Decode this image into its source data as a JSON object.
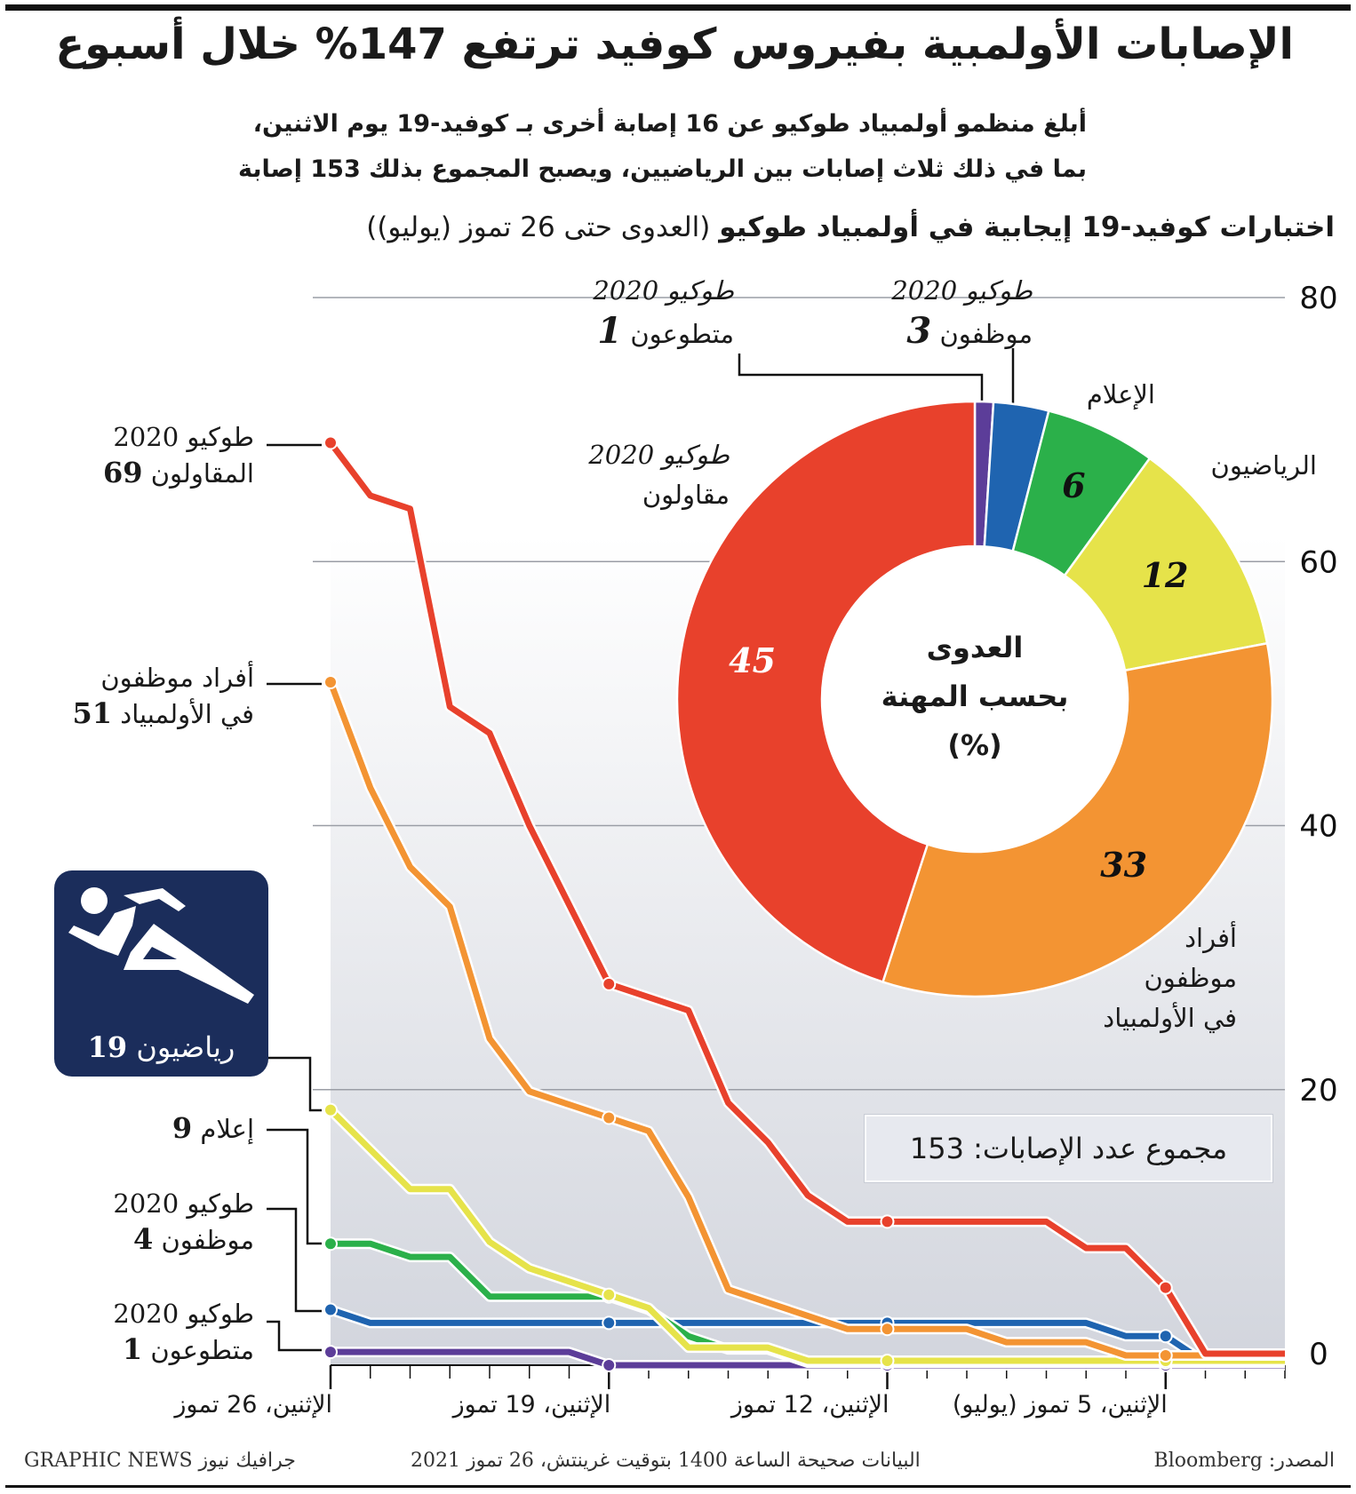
{
  "title": "الإصابات الأولمبية بفيروس كوفيد ترتفع 147% خلال أسبوع",
  "subtitle": [
    "أبلغ منظمو أولمبياد طوكيو عن 16 إصابة أخرى بـ كوفيد-19 يوم الاثنين،",
    "بما في ذلك ثلاث إصابات بين الرياضيين، ويصبح المجموع بذلك 153 إصابة"
  ],
  "chart_heading": {
    "bold": "اختبارات كوفيد-19 إيجابية في أولمبياد طوكيو",
    "normal": " (العدوى حتى 26 تموز (يوليو))"
  },
  "total_box": "مجموع عدد الإصابات: 153",
  "footer": {
    "left": "GRAPHIC NEWS جرافيك نيوز",
    "center": "البيانات صحيحة الساعة 1400 بتوقيت غرينتش، 26 تموز 2021",
    "right": "المصدر: Bloomberg"
  },
  "chart_data": [
    {
      "type": "line",
      "x_order": "reversed (latest date at left)",
      "x": [
        "26 Jul",
        "25 Jul",
        "24 Jul",
        "23 Jul",
        "22 Jul",
        "21 Jul",
        "20 Jul",
        "19 Jul",
        "18 Jul",
        "17 Jul",
        "16 Jul",
        "15 Jul",
        "14 Jul",
        "13 Jul",
        "12 Jul",
        "11 Jul",
        "10 Jul",
        "9 Jul",
        "8 Jul",
        "7 Jul",
        "6 Jul",
        "5 Jul",
        "4 Jul",
        "3 Jul",
        "2 Jul"
      ],
      "x_tick_labels": [
        {
          "at": "26 Jul",
          "label": "الإثنين، 26 تموز"
        },
        {
          "at": "19 Jul",
          "label": "الإثنين، 19 تموز"
        },
        {
          "at": "12 Jul",
          "label": "الإثنين، 12 تموز"
        },
        {
          "at": "5 Jul",
          "label": "الإثنين، 5 تموز (يوليو)"
        }
      ],
      "ylim": [
        0,
        80
      ],
      "y_ticks": [
        0,
        20,
        40,
        60,
        80
      ],
      "grid": true,
      "series": [
        {
          "key": "contractors",
          "color": "#e8412c",
          "label_lines": [
            "طوكيو 2020",
            "المقاولون"
          ],
          "total": "69",
          "values": [
            69,
            65,
            64,
            49,
            47,
            40,
            34,
            28,
            27,
            26,
            19,
            16,
            12,
            10,
            10,
            10,
            10,
            10,
            10,
            8,
            8,
            5,
            0,
            0,
            0
          ]
        },
        {
          "key": "staff",
          "color": "#f39433",
          "label_lines": [
            "أفراد موظفون",
            "في الأولمبياد"
          ],
          "total": "51",
          "values": [
            51,
            43,
            37,
            34,
            24,
            20,
            19,
            18,
            17,
            12,
            5,
            4,
            3,
            2,
            2,
            2,
            2,
            1,
            1,
            1,
            0,
            0,
            0,
            0,
            0
          ]
        },
        {
          "key": "athletes",
          "color": "#e6e34a",
          "label_lines": [
            "رياضيون"
          ],
          "total": "19",
          "values": [
            19,
            16,
            13,
            13,
            9,
            7,
            6,
            5,
            4,
            1,
            1,
            1,
            0,
            0,
            0,
            0,
            0,
            0,
            0,
            0,
            0,
            0,
            0,
            0,
            0
          ]
        },
        {
          "key": "media",
          "color": "#2bb04a",
          "label_lines": [
            "إعلام"
          ],
          "total": "9",
          "values": [
            9,
            9,
            8,
            8,
            5,
            5,
            5,
            5,
            4,
            2,
            1,
            1,
            0,
            0,
            0,
            0,
            0,
            0,
            0,
            0,
            0,
            0,
            0,
            0,
            0
          ]
        },
        {
          "key": "tokyo_staff",
          "color": "#1f64b0",
          "label_lines": [
            "طوكيو 2020",
            "موظفون"
          ],
          "total": "4",
          "values": [
            4,
            3,
            3,
            3,
            3,
            3,
            3,
            3,
            3,
            3,
            3,
            3,
            3,
            3,
            3,
            3,
            3,
            3,
            3,
            3,
            2,
            2,
            0,
            0,
            0
          ]
        },
        {
          "key": "volunteers",
          "color": "#5c3d99",
          "label_lines": [
            "طوكيو 2020",
            "متطوعون"
          ],
          "total": "1",
          "values": [
            1,
            1,
            1,
            1,
            1,
            1,
            1,
            0,
            0,
            0,
            0,
            0,
            0,
            0,
            0,
            0,
            0,
            0,
            0,
            0,
            0,
            0,
            0,
            0,
            0
          ]
        }
      ]
    },
    {
      "type": "pie",
      "donut": true,
      "center_label": [
        "العدوى",
        "بحسب المهنة",
        "(%)"
      ],
      "slices": [
        {
          "key": "volunteers",
          "value": 1,
          "color": "#5c3d99",
          "label_lines": [
            "طوكيو 2020",
            "متطوعون"
          ],
          "value_label": "1"
        },
        {
          "key": "tokyo_staff",
          "value": 3,
          "color": "#1f64b0",
          "label_lines": [
            "طوكيو 2020",
            "موظفون"
          ],
          "value_label": "3"
        },
        {
          "key": "media",
          "value": 6,
          "color": "#2bb04a",
          "label_lines": [
            "الإعلام"
          ],
          "value_label": "6"
        },
        {
          "key": "athletes",
          "value": 12,
          "color": "#e6e34a",
          "label_lines": [
            "الرياضيون"
          ],
          "value_label": "12"
        },
        {
          "key": "staff",
          "value": 33,
          "color": "#f39433",
          "label_lines": [
            "أفراد",
            "موظفون",
            "في الأولمبياد"
          ],
          "value_label": "33"
        },
        {
          "key": "contractors",
          "value": 45,
          "color": "#e8412c",
          "label_lines": [
            "طوكيو 2020",
            "مقاولون"
          ],
          "value_label": "45"
        }
      ]
    }
  ],
  "icons": {
    "athlete": "running-athlete-pictogram"
  }
}
